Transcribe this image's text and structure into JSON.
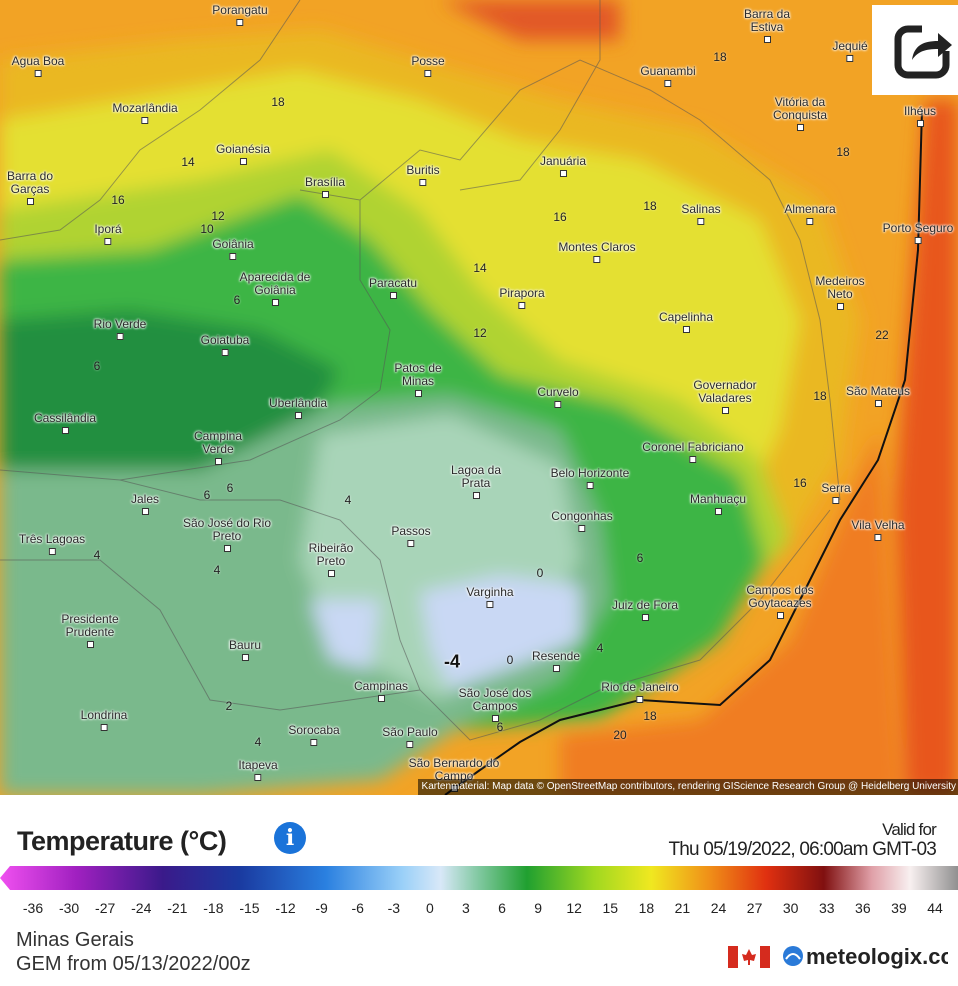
{
  "map": {
    "cities": [
      "Porangatu",
      "Agua Boa",
      "Posse",
      "Barra da Estiva",
      "Jequié",
      "Guanambi",
      "Mozarlândia",
      "Vitória da Conquista",
      "Ilhéus",
      "Goianésia",
      "Januária",
      "Barra do Garças",
      "Brasília",
      "Buritis",
      "Salinas",
      "Almenara",
      "Porto Seguro",
      "Iporá",
      "Montes Claros",
      "Goiânia",
      "Aparecida de Goiânia",
      "Paracatu",
      "Pirapora",
      "Medeiros Neto",
      "Rio Verde",
      "Capelinha",
      "Goiatuba",
      "Patos de Minas",
      "Curvelo",
      "Governador Valadares",
      "São Mateus",
      "Uberlândia",
      "Cassilândia",
      "Campina Verde",
      "Coronel Fabriciano",
      "Lagoa da Prata",
      "Belo Horizonte",
      "Serra",
      "Manhuaçu",
      "Jales",
      "Congonhas",
      "Vila Velha",
      "São José do Rio Preto",
      "Passos",
      "Três Lagoas",
      "Ribeirão Preto",
      "Varginha",
      "Campos dos Goytacazes",
      "Juiz de Fora",
      "Presidente Prudente",
      "Bauru",
      "Resende",
      "Campinas",
      "Rio de Janeiro",
      "São José dos Campos",
      "Londrina",
      "Sorocaba",
      "São Paulo",
      "Itapeva",
      "São Bernardo do Campo"
    ],
    "contour_labels": [
      18,
      14,
      16,
      12,
      10,
      16,
      18,
      14,
      12,
      18,
      18,
      22,
      18,
      16,
      6,
      6,
      6,
      6,
      4,
      4,
      4,
      2,
      4,
      6,
      6,
      4,
      18,
      20,
      0,
      0,
      -4
    ],
    "attribution": "Kartenmaterial: Map data © OpenStreetMap contributors, rendering GIScience Research Group @ Heidelberg University"
  },
  "legend": {
    "title": "Temperature (°C)",
    "valid_label": "Valid for",
    "valid_time": "Thu 05/19/2022, 06:00am GMT-03",
    "ticks": [
      -36,
      -30,
      -27,
      -24,
      -21,
      -18,
      -15,
      -12,
      -9,
      -6,
      -3,
      0,
      3,
      6,
      9,
      12,
      15,
      18,
      21,
      24,
      27,
      30,
      33,
      36,
      39,
      44
    ]
  },
  "footer": {
    "region": "Minas Gerais",
    "model": "GEM from 05/13/2022/00z",
    "brand": "meteologix.com"
  }
}
